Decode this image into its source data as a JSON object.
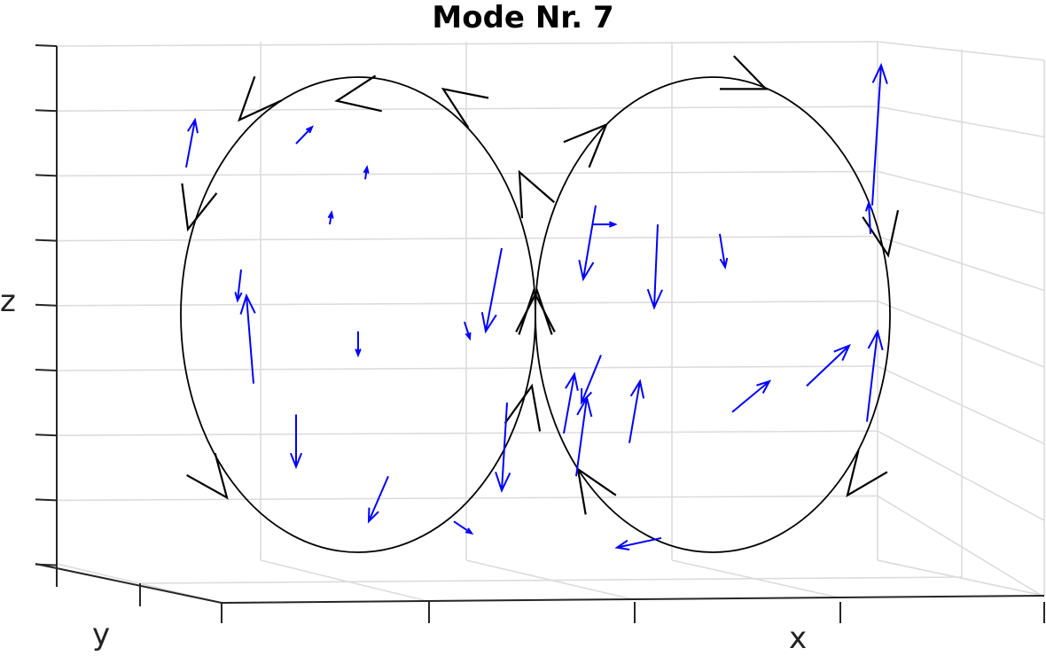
{
  "chart_data": {
    "type": "3d-quiver",
    "title": "Mode Nr. 7",
    "xlabel": "x",
    "ylabel": "y",
    "zlabel": "z",
    "grid": true,
    "tick_labels_shown": false,
    "colors": {
      "loop": "#000000",
      "field": "#0000ff",
      "grid": "#dcdcdc",
      "axis": "#262626"
    },
    "loops": [
      {
        "name": "left-loop",
        "center": [
          -1,
          0
        ],
        "radius": 1,
        "direction": "counterclockwise"
      },
      {
        "name": "right-loop",
        "center": [
          1,
          0
        ],
        "radius": 1,
        "direction": "clockwise"
      }
    ],
    "loop_arrows": [
      {
        "loop": 0,
        "t": [
          0.48,
          0.95
        ]
      },
      {
        "loop": 0,
        "t": [
          -0.12,
          0.9
        ]
      },
      {
        "loop": 0,
        "t": [
          -0.67,
          0.82
        ]
      },
      {
        "loop": 0,
        "t": [
          -0.96,
          0.36
        ]
      },
      {
        "loop": 0,
        "t": [
          -0.74,
          -0.77
        ]
      },
      {
        "loop": 0,
        "t": [
          0.98,
          -0.3
        ]
      },
      {
        "loop": 0,
        "t": [
          0.99,
          0.1
        ]
      },
      {
        "loop": 0,
        "t": [
          0.91,
          0.6
        ]
      },
      {
        "loop": 1,
        "t": [
          -0.6,
          0.8
        ]
      },
      {
        "loop": 1,
        "t": [
          0.3,
          0.95
        ]
      },
      {
        "loop": 1,
        "t": [
          0.99,
          0.25
        ]
      },
      {
        "loop": 1,
        "t": [
          0.76,
          -0.76
        ]
      },
      {
        "loop": 1,
        "t": [
          -0.76,
          -0.65
        ]
      },
      {
        "loop": 1,
        "t": [
          -0.99,
          0.1
        ]
      }
    ],
    "field_vectors": [
      {
        "p": [
          -1.97,
          0.62
        ],
        "v": [
          0.05,
          0.2
        ]
      },
      {
        "p": [
          -1.35,
          0.72
        ],
        "v": [
          0.09,
          0.07
        ]
      },
      {
        "p": [
          -0.96,
          0.57
        ],
        "v": [
          0.01,
          0.05
        ]
      },
      {
        "p": [
          -1.16,
          0.38
        ],
        "v": [
          0.01,
          0.05
        ]
      },
      {
        "p": [
          -1.66,
          0.19
        ],
        "v": [
          -0.02,
          -0.13
        ]
      },
      {
        "p": [
          -1.59,
          -0.29
        ],
        "v": [
          -0.04,
          0.37
        ]
      },
      {
        "p": [
          -1.0,
          -0.07
        ],
        "v": [
          0.0,
          -0.1
        ]
      },
      {
        "p": [
          -0.19,
          0.28
        ],
        "v": [
          -0.09,
          -0.35
        ]
      },
      {
        "p": [
          -0.4,
          -0.03
        ],
        "v": [
          0.03,
          -0.07
        ]
      },
      {
        "p": [
          -1.35,
          -0.42
        ],
        "v": [
          0.0,
          -0.22
        ]
      },
      {
        "p": [
          -0.83,
          -0.68
        ],
        "v": [
          -0.11,
          -0.19
        ]
      },
      {
        "p": [
          -0.46,
          -0.87
        ],
        "v": [
          0.1,
          -0.05
        ]
      },
      {
        "p": [
          -0.16,
          -0.37
        ],
        "v": [
          -0.03,
          -0.37
        ]
      },
      {
        "p": [
          0.34,
          0.46
        ],
        "v": [
          -0.07,
          -0.31
        ]
      },
      {
        "p": [
          0.32,
          0.38
        ],
        "v": [
          0.13,
          0.0
        ]
      },
      {
        "p": [
          0.69,
          0.38
        ],
        "v": [
          -0.02,
          -0.35
        ]
      },
      {
        "p": [
          1.04,
          0.34
        ],
        "v": [
          0.03,
          -0.14
        ]
      },
      {
        "p": [
          1.89,
          0.34
        ],
        "v": [
          -0.01,
          0.13
        ]
      },
      {
        "p": [
          1.9,
          0.46
        ],
        "v": [
          0.05,
          0.59
        ]
      },
      {
        "p": [
          1.87,
          -0.45
        ],
        "v": [
          0.06,
          0.38
        ]
      },
      {
        "p": [
          1.53,
          -0.3
        ],
        "v": [
          0.24,
          0.17
        ]
      },
      {
        "p": [
          1.11,
          -0.41
        ],
        "v": [
          0.21,
          0.13
        ]
      },
      {
        "p": [
          0.53,
          -0.54
        ],
        "v": [
          0.06,
          0.26
        ]
      },
      {
        "p": [
          0.23,
          -0.68
        ],
        "v": [
          0.06,
          0.33
        ]
      },
      {
        "p": [
          0.37,
          -0.17
        ],
        "v": [
          -0.11,
          -0.2
        ]
      },
      {
        "p": [
          0.16,
          -0.5
        ],
        "v": [
          0.06,
          0.25
        ]
      },
      {
        "p": [
          0.71,
          -0.94
        ],
        "v": [
          -0.25,
          -0.04
        ]
      }
    ]
  }
}
